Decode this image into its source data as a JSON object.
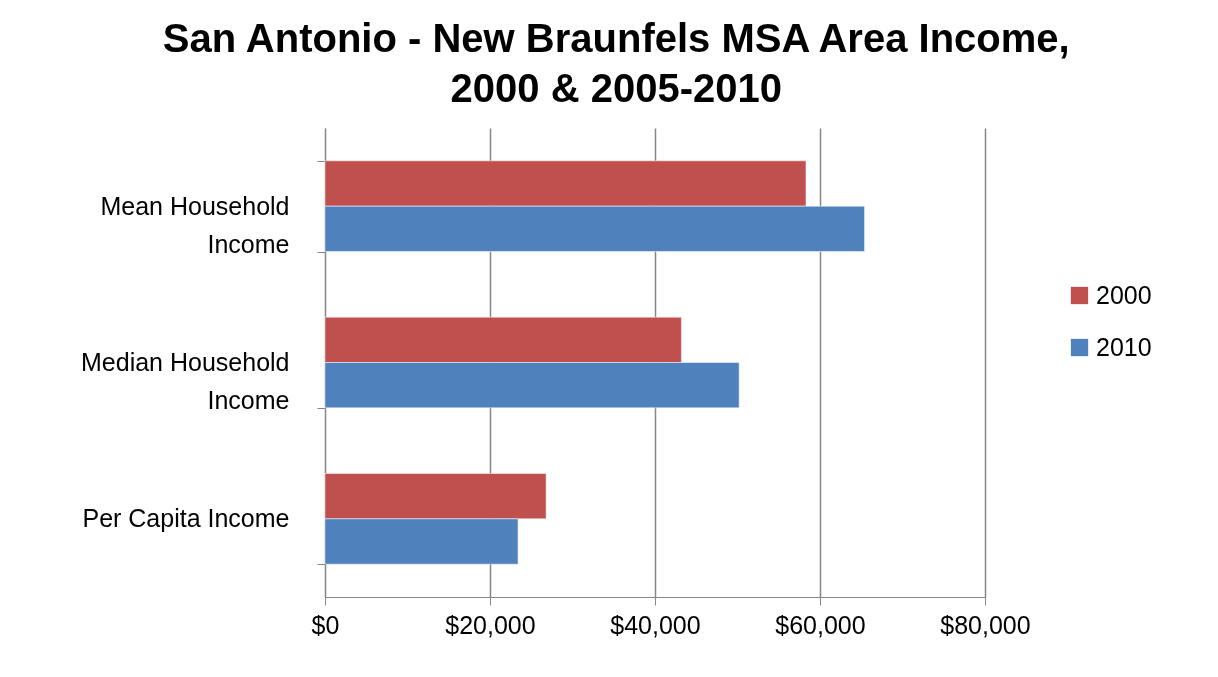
{
  "chart_data": {
    "type": "bar",
    "orientation": "horizontal",
    "title": "San Antonio - New Braunfels MSA Area Income, 2000 & 2005-2010",
    "categories": [
      "Mean Household Income",
      "Median Household Income",
      "Per Capita Income"
    ],
    "series": [
      {
        "name": "2000",
        "color": "#c0504d",
        "values": [
          58300,
          43200,
          26800
        ]
      },
      {
        "name": "2010",
        "color": "#4f81bd",
        "values": [
          65400,
          50200,
          23400
        ]
      }
    ],
    "xlim": [
      0,
      80000
    ],
    "xticks": [
      {
        "value": 0,
        "label": "$0"
      },
      {
        "value": 20000,
        "label": "$20,000"
      },
      {
        "value": 40000,
        "label": "$40,000"
      },
      {
        "value": 60000,
        "label": "$60,000"
      },
      {
        "value": 80000,
        "label": "$80,000"
      }
    ],
    "grid": "x",
    "legend": "right"
  }
}
